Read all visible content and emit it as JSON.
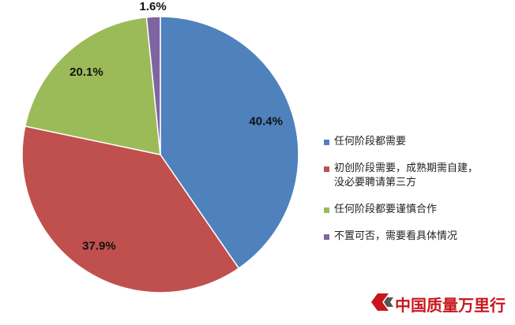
{
  "chart_data": {
    "type": "pie",
    "categories": [
      "任何阶段都需要",
      "初创阶段需要，成熟期需自建，没必要聘请第三方",
      "任何阶段都要谨慎合作",
      "不置可否，需要看具体情况"
    ],
    "values": [
      40.4,
      37.9,
      20.1,
      1.6
    ],
    "value_labels": [
      "40.4%",
      "37.9%",
      "20.1%",
      "1.6%"
    ],
    "colors": [
      "#4f81bd",
      "#c0504d",
      "#9bbb59",
      "#8064a2"
    ],
    "legend": "right"
  },
  "watermark": "中国质量万里行"
}
